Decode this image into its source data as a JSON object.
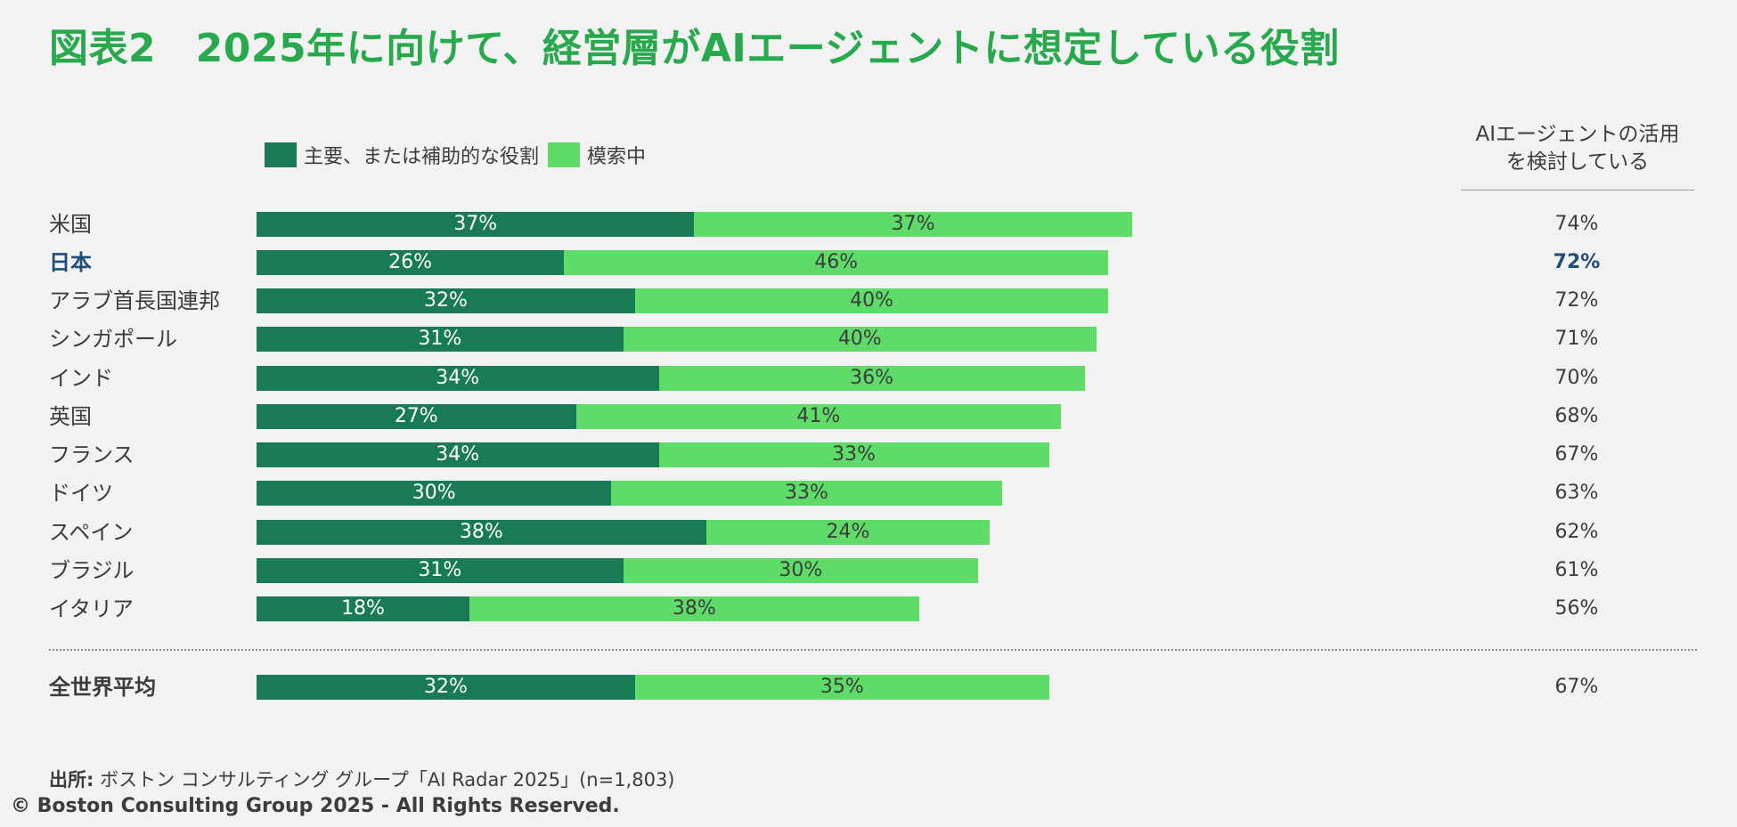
{
  "title": "図表2　2025年に向けて、経営層がAIエージェントに想定している役割",
  "legend": {
    "primary_label": "主要、または補助的な役割",
    "explore_label": "模索中"
  },
  "column_header": {
    "line1": "AIエージェントの活用",
    "line2": "を検討している"
  },
  "colors": {
    "primary": "#197a56",
    "explore": "#5fdb6a",
    "title": "#29a94d",
    "highlight": "#1f4e79"
  },
  "chart_data": {
    "type": "bar",
    "orientation": "horizontal",
    "stacked": true,
    "title": "2025年に向けて、経営層がAIエージェントに想定している役割",
    "categories": [
      "米国",
      "日本",
      "アラブ首長国連邦",
      "シンガポール",
      "インド",
      "英国",
      "フランス",
      "ドイツ",
      "スペイン",
      "ブラジル",
      "イタリア",
      "全世界平均"
    ],
    "series": [
      {
        "name": "主要、または補助的な役割",
        "values": [
          37,
          26,
          32,
          31,
          34,
          27,
          34,
          30,
          38,
          31,
          18,
          32
        ]
      },
      {
        "name": "模索中",
        "values": [
          37,
          46,
          40,
          40,
          36,
          41,
          33,
          33,
          24,
          30,
          38,
          35
        ]
      }
    ],
    "totals_label": "AIエージェントの活用を検討している",
    "totals": [
      74,
      72,
      72,
      71,
      70,
      68,
      67,
      63,
      62,
      61,
      56,
      67
    ],
    "highlight_category": "日本",
    "average_category": "全世界平均",
    "xlim": [
      0,
      100
    ],
    "unit": "%"
  },
  "source": {
    "prefix": "出所:",
    "text": " ボストン コンサルティング グループ「AI Radar 2025」(n=1,803)"
  },
  "copyright": "© Boston Consulting Group 2025 - All Rights Reserved."
}
